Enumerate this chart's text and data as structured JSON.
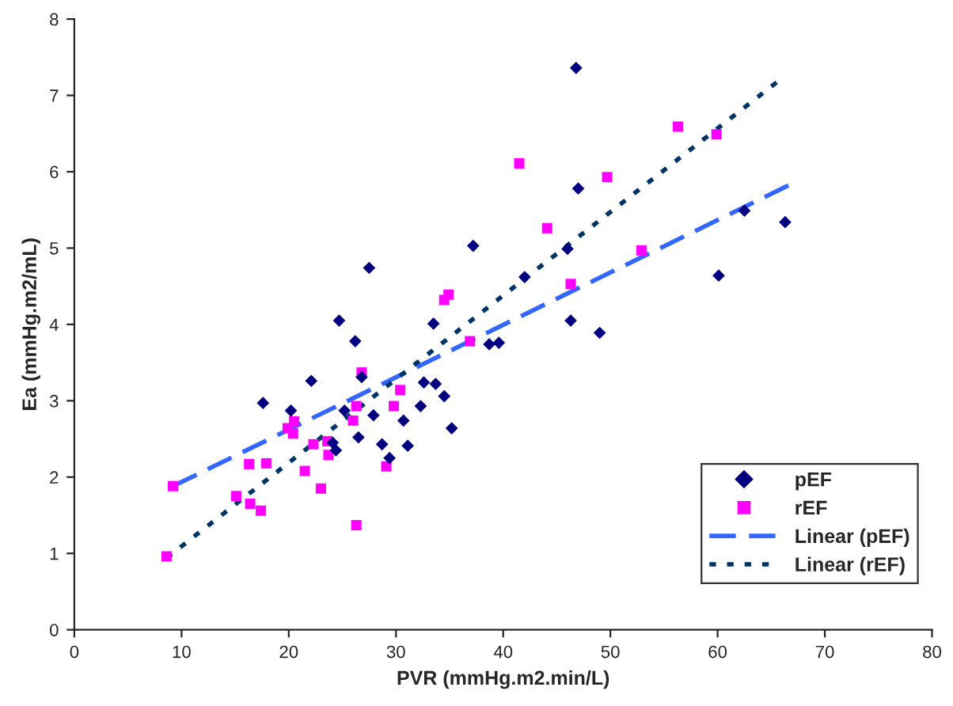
{
  "chart_data": {
    "type": "scatter",
    "xlabel": "PVR (mmHg.m2.min/L)",
    "ylabel": "Ea (mmHg.m2/mL)",
    "xlim": [
      0,
      80
    ],
    "ylim": [
      0,
      8
    ],
    "xticks": [
      0,
      10,
      20,
      30,
      40,
      50,
      60,
      70,
      80
    ],
    "yticks": [
      0,
      1,
      2,
      3,
      4,
      5,
      6,
      7,
      8
    ],
    "grid": false,
    "legend": "bottom right",
    "series": [
      {
        "name": "pEF",
        "type": "scatter",
        "marker": "diamond",
        "color": "#000080",
        "x": [
          17.6,
          20.2,
          22.1,
          24.7,
          26.2,
          26.8,
          27.5,
          27.9,
          26.5,
          25.2,
          24.1,
          24.4,
          46.8,
          47.0,
          37.2,
          46.0,
          42.0,
          33.5,
          46.3,
          49.0,
          38.7,
          39.6,
          32.6,
          33.7,
          34.5,
          32.3,
          30.7,
          35.2,
          28.7,
          31.1,
          29.4,
          62.5,
          66.3,
          60.1
        ],
        "values": [
          2.97,
          2.87,
          3.26,
          4.05,
          3.78,
          3.31,
          4.74,
          2.81,
          2.52,
          2.87,
          2.45,
          2.35,
          7.36,
          5.78,
          5.03,
          4.99,
          4.62,
          4.01,
          4.05,
          3.89,
          3.74,
          3.76,
          3.24,
          3.22,
          3.06,
          2.93,
          2.74,
          2.64,
          2.43,
          2.41,
          2.25,
          5.49,
          5.34,
          4.64
        ]
      },
      {
        "name": "rEF",
        "type": "scatter",
        "marker": "square",
        "color": "#ff00ff",
        "x": [
          8.6,
          9.2,
          15.1,
          16.4,
          17.4,
          16.3,
          17.9,
          19.9,
          20.4,
          20.5,
          21.5,
          22.3,
          23.0,
          23.6,
          23.7,
          26.0,
          26.3,
          26.8,
          26.3,
          30.4,
          29.8,
          29.1,
          36.9,
          34.5,
          34.9,
          41.5,
          44.1,
          46.3,
          49.7,
          56.3,
          59.9,
          52.9
        ],
        "values": [
          0.96,
          1.88,
          1.75,
          1.65,
          1.56,
          2.17,
          2.18,
          2.64,
          2.57,
          2.73,
          2.08,
          2.43,
          1.85,
          2.47,
          2.29,
          2.74,
          2.93,
          3.37,
          1.37,
          3.14,
          2.93,
          2.14,
          3.78,
          4.32,
          4.39,
          6.11,
          5.26,
          4.53,
          5.93,
          6.59,
          6.49,
          4.97
        ]
      },
      {
        "name": "Linear (pEF)",
        "type": "line",
        "line_style": "dashed",
        "color": "#3366ff",
        "x": [
          9.2,
          66.6
        ],
        "values": [
          1.88,
          5.82
        ]
      },
      {
        "name": "Linear (rEF)",
        "type": "line",
        "line_style": "dotted",
        "color": "#003366",
        "x": [
          8.6,
          65.5
        ],
        "values": [
          0.94,
          7.17
        ]
      }
    ]
  }
}
